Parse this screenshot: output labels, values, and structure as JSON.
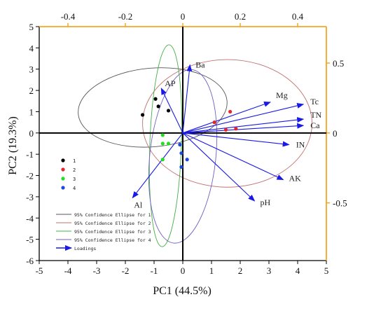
{
  "chart_data": {
    "type": "scatter",
    "title": "",
    "xlabel": "PC1 (44.5%)",
    "ylabel": "PC2 (19.3%)",
    "xlim": [
      -5,
      5
    ],
    "ylim": [
      -6,
      5
    ],
    "x_ticks": [
      "-5",
      "-4",
      "-3",
      "-2",
      "-1",
      "0",
      "1",
      "2",
      "3",
      "4",
      "5"
    ],
    "y_ticks": [
      "5",
      "4",
      "3",
      "2",
      "1",
      "0",
      "-1",
      "-2",
      "-3",
      "-4",
      "-5",
      "-6"
    ],
    "secondary_x_ticks": [
      "-0.4",
      "-0.2",
      "0",
      "0.2",
      "0.4"
    ],
    "secondary_y_ticks": [
      "0.5",
      "0",
      "-0.5"
    ],
    "secondary_axis_color": "#F5A623",
    "series": [
      {
        "name": "1",
        "color": "#000000",
        "points": [
          [
            -1.4,
            0.85
          ],
          [
            -0.95,
            1.6
          ],
          [
            -0.85,
            1.25
          ],
          [
            -0.5,
            1.05
          ]
        ]
      },
      {
        "name": "2",
        "color": "#E8262A",
        "points": [
          [
            1.1,
            0.5
          ],
          [
            1.5,
            0.15
          ],
          [
            1.65,
            1.0
          ],
          [
            1.85,
            0.2
          ]
        ]
      },
      {
        "name": "3",
        "color": "#22DD22",
        "points": [
          [
            -0.7,
            -0.1
          ],
          [
            -0.7,
            -0.5
          ],
          [
            -0.5,
            -0.5
          ],
          [
            -0.7,
            -1.25
          ]
        ]
      },
      {
        "name": "4",
        "color": "#1E4BDD",
        "points": [
          [
            -0.1,
            -0.55
          ],
          [
            -0.05,
            -0.95
          ],
          [
            0.15,
            -1.25
          ],
          [
            -0.05,
            -1.6
          ]
        ]
      }
    ],
    "ellipses": [
      {
        "name": "95% Confidence Ellipse for 1",
        "color": "#555555",
        "center": [
          -1.05,
          1.2
        ],
        "semi_axes": [
          2.6,
          1.85
        ],
        "angle_deg": -5
      },
      {
        "name": "95% Confidence Ellipse for 2",
        "color": "#C07070",
        "center": [
          1.55,
          0.45
        ],
        "semi_axes": [
          2.95,
          3.0
        ],
        "angle_deg": 0
      },
      {
        "name": "95% Confidence Ellipse for 3",
        "color": "#44B044",
        "center": [
          -0.6,
          -0.6
        ],
        "semi_axes": [
          0.55,
          4.75
        ],
        "angle_deg": 2
      },
      {
        "name": "95% Confidence Ellipse for 4",
        "color": "#7060C0",
        "center": [
          0.0,
          -1.1
        ],
        "semi_axes": [
          1.15,
          4.1
        ],
        "angle_deg": 6
      }
    ],
    "loadings_name": "Loadings",
    "loadings_color": "#1A1AE6",
    "loadings": [
      {
        "name": "Ba",
        "x": 0.25,
        "y": 3.2
      },
      {
        "name": "AP",
        "x": -0.75,
        "y": 2.1
      },
      {
        "name": "Mg",
        "x": 3.05,
        "y": 1.45
      },
      {
        "name": "Tc",
        "x": 4.2,
        "y": 1.35
      },
      {
        "name": "TN",
        "x": 4.2,
        "y": 0.65
      },
      {
        "name": "Ca",
        "x": 4.2,
        "y": 0.35
      },
      {
        "name": "IN",
        "x": 3.7,
        "y": -0.55
      },
      {
        "name": "AK",
        "x": 3.5,
        "y": -2.2
      },
      {
        "name": "pH",
        "x": 2.5,
        "y": -3.2
      },
      {
        "name": "Al",
        "x": -1.75,
        "y": -3.05
      }
    ]
  }
}
